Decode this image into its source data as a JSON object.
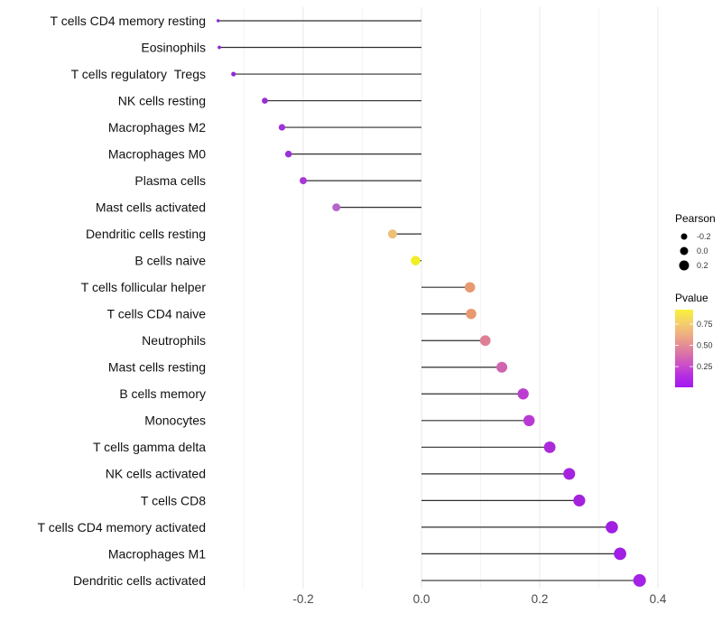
{
  "figure": {
    "background": "#ffffff",
    "stem_color": "#2e2e2e",
    "grid_major_color": "#e7e7e7",
    "grid_minor_color": "#f3f3f3",
    "axis_text_color": "#4a4a4a",
    "category_text_color": "#111111"
  },
  "chart_data": {
    "type": "lollipop",
    "orientation": "horizontal",
    "title": "",
    "xlabel": "",
    "ylabel": "",
    "xlim": [
      -0.36,
      0.43
    ],
    "grid": "vertical gridlines every 0.1 from -0.3 to 0.4",
    "x_ticks": [
      "-0.2",
      "0.0",
      "0.2",
      "0.4"
    ],
    "x_tick_values": [
      -0.2,
      0.0,
      0.2,
      0.4
    ],
    "categories": [
      "T cells CD4 memory resting",
      "Eosinophils",
      "T cells regulatory  Tregs",
      "NK cells resting",
      "Macrophages M2",
      "Macrophages M0",
      "Plasma cells",
      "Mast cells activated",
      "Dendritic cells resting",
      "B cells naive",
      "T cells follicular helper",
      "T cells CD4 naive",
      "Neutrophils",
      "Mast cells resting",
      "B cells memory",
      "Monocytes",
      "T cells gamma delta",
      "NK cells activated",
      "T cells CD8",
      "T cells CD4 memory activated",
      "Macrophages M1",
      "Dendritic cells activated"
    ],
    "series": [
      {
        "name": "Pearson",
        "values": [
          -0.344,
          -0.342,
          -0.318,
          -0.265,
          -0.236,
          -0.225,
          -0.2,
          -0.144,
          -0.049,
          -0.01,
          0.082,
          0.084,
          0.108,
          0.136,
          0.172,
          0.182,
          0.217,
          0.25,
          0.267,
          0.322,
          0.336,
          0.369
        ]
      }
    ],
    "point_colors": [
      "#8c26d4",
      "#8c26d4",
      "#8f29d6",
      "#9a2ed6",
      "#a033da",
      "#9c30d6",
      "#a737d9",
      "#b465cc",
      "#efc078",
      "#f0ee24",
      "#e7996f",
      "#e7996f",
      "#de8095",
      "#d065af",
      "#bc3ed0",
      "#b93ad2",
      "#ac2ad9",
      "#a523e0",
      "#a421de",
      "#a01fe3",
      "#a01fe3",
      "#a322e6"
    ],
    "legend_position": "right",
    "legends": {
      "size": {
        "title": "Pearson",
        "labels": [
          "-0.2",
          "0.0",
          "0.2"
        ],
        "dot_color": "#000000"
      },
      "color": {
        "title": "Pvalue",
        "labels": [
          "0.75",
          "0.50",
          "0.25"
        ],
        "bar_range": [
          0.0,
          0.92
        ],
        "gradient_top_to_bottom": [
          "#f9f138",
          "#f5d465",
          "#f0b67e",
          "#e69490",
          "#da71a8",
          "#cb4ec9",
          "#b52ce2",
          "#a317f2"
        ]
      }
    }
  }
}
